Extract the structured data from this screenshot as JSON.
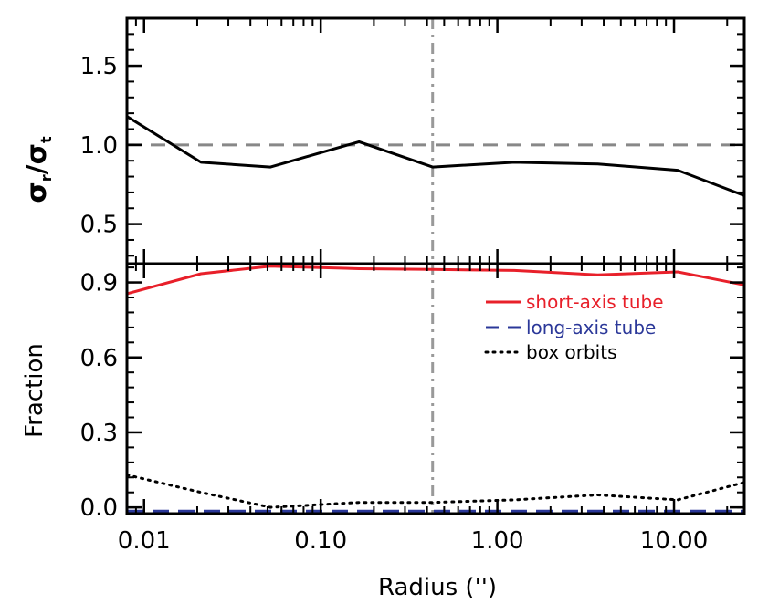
{
  "chart_data": [
    {
      "type": "line",
      "panel": "top",
      "ylabel_main": "σ",
      "ylabel_sub_r": "r",
      "ylabel_sub_t": "t",
      "ylabel_slash": "/",
      "xscale": "log",
      "xlim": [
        0.008,
        25
      ],
      "ylim": [
        0.25,
        1.8
      ],
      "yticks": [
        {
          "value": 0.5,
          "label": "0.5"
        },
        {
          "value": 1.0,
          "label": "1.0"
        },
        {
          "value": 1.5,
          "label": "1.5"
        }
      ],
      "reference_line_y": 1.0,
      "vertical_line_x": 0.43,
      "series": [
        {
          "color": "#000000",
          "style": "solid",
          "x": [
            0.008,
            0.021,
            0.052,
            0.165,
            0.43,
            1.25,
            3.7,
            10.5,
            25
          ],
          "y": [
            1.18,
            0.89,
            0.86,
            1.02,
            0.86,
            0.89,
            0.88,
            0.84,
            0.68
          ]
        }
      ]
    },
    {
      "type": "line",
      "panel": "bottom",
      "xlabel": "Radius ('')",
      "ylabel": "Fraction",
      "xscale": "log",
      "xlim": [
        0.008,
        25
      ],
      "ylim": [
        -0.025,
        0.975
      ],
      "xticks": [
        {
          "value": 0.01,
          "label": "0.01"
        },
        {
          "value": 0.1,
          "label": "0.10"
        },
        {
          "value": 1,
          "label": "1.00"
        },
        {
          "value": 10,
          "label": "10.00"
        }
      ],
      "yticks": [
        {
          "value": 0.0,
          "label": "0.0"
        },
        {
          "value": 0.3,
          "label": "0.3"
        },
        {
          "value": 0.6,
          "label": "0.6"
        },
        {
          "value": 0.9,
          "label": "0.9"
        }
      ],
      "vertical_line_x": 0.43,
      "legend_position": "top-right",
      "series": [
        {
          "name": "short-axis tube",
          "color": "#e8202a",
          "style": "solid",
          "x": [
            0.008,
            0.021,
            0.052,
            0.165,
            0.43,
            1.25,
            3.7,
            10.5,
            25
          ],
          "y": [
            0.855,
            0.935,
            0.965,
            0.955,
            0.952,
            0.948,
            0.93,
            0.942,
            0.89
          ]
        },
        {
          "name": "long-axis tube",
          "color": "#2b3899",
          "style": "dashed",
          "x": [
            0.008,
            0.021,
            0.052,
            0.165,
            0.43,
            1.25,
            3.7,
            10.5,
            25
          ],
          "y": [
            -0.015,
            -0.015,
            -0.015,
            -0.015,
            -0.015,
            -0.015,
            -0.015,
            -0.015,
            -0.015
          ]
        },
        {
          "name": "box orbits",
          "color": "#000000",
          "style": "dotted",
          "x": [
            0.008,
            0.021,
            0.052,
            0.165,
            0.43,
            1.25,
            3.7,
            10.5,
            25
          ],
          "y": [
            0.13,
            0.06,
            0.0,
            0.02,
            0.02,
            0.03,
            0.05,
            0.03,
            0.1
          ]
        }
      ]
    }
  ]
}
